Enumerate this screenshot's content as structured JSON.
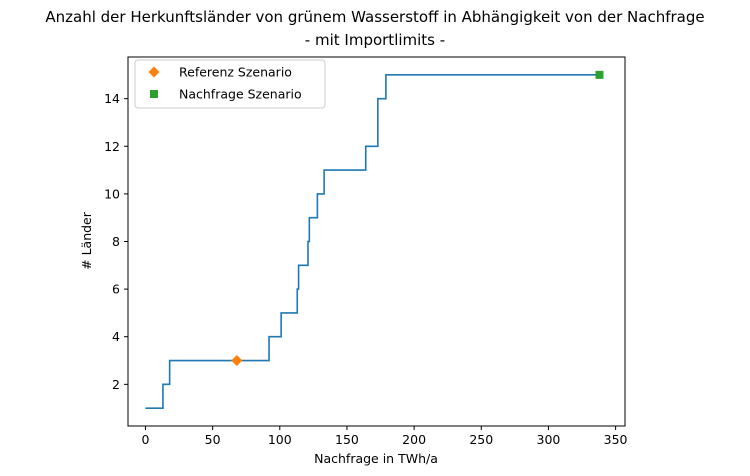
{
  "chart_data": {
    "type": "line",
    "title_line1": "Anzahl der Herkunftsländer von grünem Wasserstoff in Abhängigkeit von der Nachfrage",
    "title_line2": "- mit Importlimits -",
    "xlabel": "Nachfrage in TWh/a",
    "ylabel": "# Länder",
    "xlim": [
      -13,
      357
    ],
    "ylim": [
      0.25,
      15.75
    ],
    "xticks": [
      0,
      50,
      100,
      150,
      200,
      250,
      300,
      350
    ],
    "yticks": [
      2,
      4,
      6,
      8,
      10,
      12,
      14
    ],
    "grid": false,
    "legend_position": "top-left",
    "series": [
      {
        "kind": "step-line",
        "color": "#1f77b4",
        "x": [
          0,
          13,
          13,
          15,
          15,
          18,
          18,
          92,
          92,
          101,
          101,
          113,
          113,
          114,
          114,
          116,
          116,
          121,
          121,
          122,
          122,
          124,
          124,
          128,
          128,
          133,
          133,
          136,
          136,
          164,
          164,
          173,
          173,
          179,
          179,
          183,
          183,
          338
        ],
        "y": [
          1,
          1,
          2,
          2,
          2,
          2,
          3,
          3,
          4,
          4,
          5,
          5,
          6,
          6,
          7,
          7,
          7,
          7,
          8,
          8,
          9,
          9,
          9,
          9,
          10,
          10,
          11,
          11,
          11,
          11,
          12,
          12,
          14,
          14,
          15,
          15,
          15,
          15
        ]
      },
      {
        "name": "Referenz Szenario",
        "kind": "marker",
        "marker": "diamond",
        "color": "#ff7f0e",
        "x": [
          68
        ],
        "y": [
          3
        ]
      },
      {
        "name": "Nachfrage Szenario",
        "kind": "marker",
        "marker": "square",
        "color": "#2ca02c",
        "x": [
          338
        ],
        "y": [
          15
        ]
      }
    ]
  }
}
